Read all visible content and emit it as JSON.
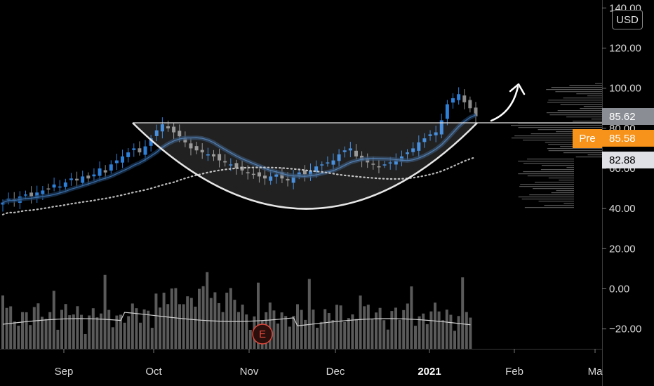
{
  "axis": {
    "currency": "USD",
    "y_ticks": [
      "140.00",
      "120.00",
      "100.00",
      "80.00",
      "60.00",
      "40.00",
      "20.00",
      "0.00",
      "−20.00"
    ],
    "x_ticks": [
      {
        "label": "Sep",
        "bold": false
      },
      {
        "label": "Oct",
        "bold": false
      },
      {
        "label": "Nov",
        "bold": false
      },
      {
        "label": "Dec",
        "bold": false
      },
      {
        "label": "2021",
        "bold": true
      },
      {
        "label": "Feb",
        "bold": false
      },
      {
        "label": "Ma",
        "bold": false
      }
    ]
  },
  "price_tags": {
    "last": {
      "text": "85.62",
      "bg": "#8a8d93",
      "fg": "#ffffff"
    },
    "pre": {
      "label": "Pre",
      "text": "85.58",
      "bg": "#f7931a",
      "fg": "#ffffff"
    },
    "low": {
      "text": "82.88",
      "bg": "#dfe1e6",
      "fg": "#000000"
    }
  },
  "earnings_marker": {
    "label": "E",
    "color": "#e0483c"
  },
  "colors": {
    "up": "#2d7fd8",
    "down": "#8c8c8c",
    "ema_fill": "#1c3a5c",
    "volume": "#5a5a5a",
    "accent": "#f7931a"
  },
  "chart_data": {
    "type": "candlestick",
    "title": "",
    "y_range": [
      -30,
      140
    ],
    "annotations": [
      "cup-and-handle pattern",
      "breakout arrow"
    ],
    "close_series": [
      43,
      45,
      44,
      46,
      47,
      46,
      48,
      49,
      50,
      52,
      51,
      53,
      55,
      54,
      56,
      55,
      57,
      60,
      58,
      62,
      64,
      66,
      68,
      70,
      68,
      71,
      75,
      79,
      82,
      80,
      78,
      76,
      73,
      70,
      69,
      68,
      67,
      66,
      64,
      63,
      62,
      60,
      59,
      58,
      57,
      56,
      55,
      56,
      57,
      55,
      54,
      56,
      58,
      57,
      59,
      61,
      62,
      63,
      64,
      67,
      69,
      70,
      66,
      64,
      63,
      62,
      61,
      62,
      63,
      64,
      66,
      68,
      70,
      73,
      75,
      77,
      78,
      84,
      92,
      95,
      97,
      93,
      90,
      86
    ]
  }
}
